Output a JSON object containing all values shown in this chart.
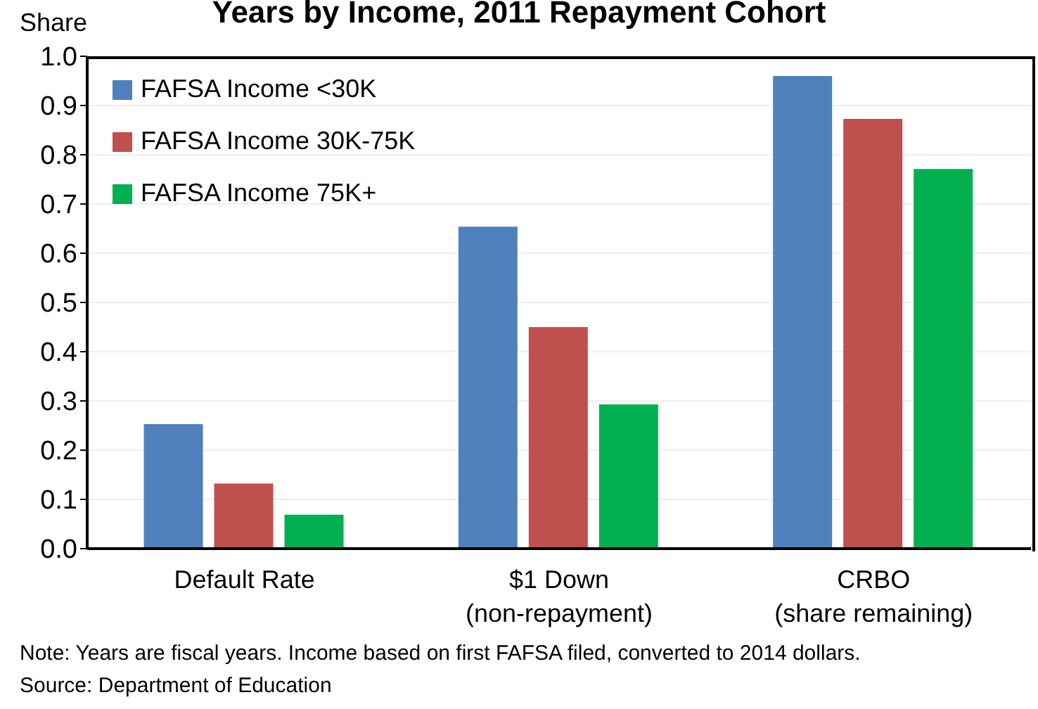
{
  "chart_data": {
    "type": "bar",
    "title": "Years by Income, 2011 Repayment Cohort",
    "ylabel": "Share",
    "categories": [
      "Default Rate",
      "$1 Down\n(non-repayment)",
      "CRBO\n(share remaining)"
    ],
    "series": [
      {
        "name": "FAFSA Income <30K",
        "color": "#4f81bd",
        "values": [
          0.253,
          0.654,
          0.96
        ]
      },
      {
        "name": "FAFSA Income 30K-75K",
        "color": "#c0504d",
        "values": [
          0.132,
          0.45,
          0.873
        ]
      },
      {
        "name": "FAFSA Income 75K+",
        "color": "#00b050",
        "values": [
          0.069,
          0.293,
          0.771
        ]
      }
    ],
    "ylim": [
      0,
      1
    ],
    "yticks": [
      {
        "value": 0,
        "label": "0.0"
      },
      {
        "value": 0.1,
        "label": "0.1"
      },
      {
        "value": 0.2,
        "label": "0.2"
      },
      {
        "value": 0.3,
        "label": "0.3"
      },
      {
        "value": 0.4,
        "label": "0.4"
      },
      {
        "value": 0.5,
        "label": "0.5"
      },
      {
        "value": 0.6,
        "label": "0.6"
      },
      {
        "value": 0.7,
        "label": "0.7"
      },
      {
        "value": 0.8,
        "label": "0.8"
      },
      {
        "value": 0.9,
        "label": "0.9"
      },
      {
        "value": 1,
        "label": "1.0"
      }
    ],
    "grid": "y",
    "legend": "top left",
    "annotations": [
      "Note: Years are fiscal years. Income based on first FAFSA filed, converted to 2014 dollars.",
      "Source: Department of Education"
    ]
  }
}
